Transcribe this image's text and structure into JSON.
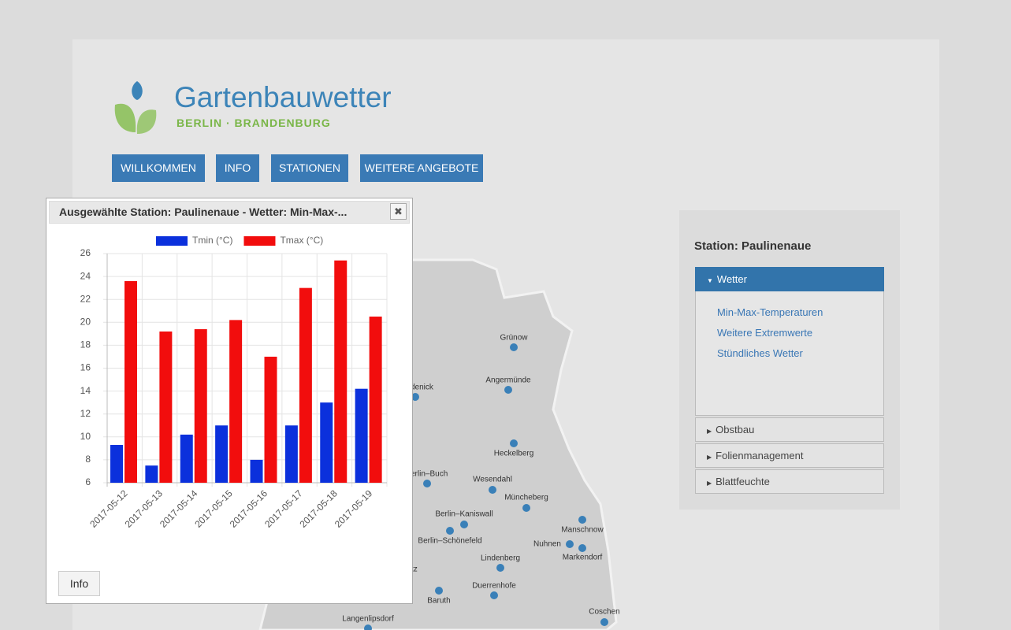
{
  "header": {
    "logo_title": "Gartenbauwetter",
    "logo_subtitle": "BERLIN · BRANDENBURG"
  },
  "nav": [
    "WILLKOMMEN",
    "INFO",
    "STATIONEN",
    "WEITERE ANGEBOTE"
  ],
  "map": {
    "places": [
      "Grünow",
      "Angermünde",
      "denick",
      "Heckelberg",
      "erlin–Buch",
      "Wesendahl",
      "Müncheberg",
      "Berlin–Kaniswall",
      "Berlin–Schönefeld",
      "Manschnow",
      "Nuhnen",
      "Markendorf",
      "Lindenberg",
      "Duerrenhofe",
      "Baruth",
      "tz",
      "Langenlipsdorf",
      "Coschen"
    ]
  },
  "dialog": {
    "title": "Ausgewählte Station: Paulinenaue - Wetter: Min-Max-...",
    "button": "Info"
  },
  "chart_data": {
    "type": "bar",
    "categories": [
      "2017-05-12",
      "2017-05-13",
      "2017-05-14",
      "2017-05-15",
      "2017-05-16",
      "2017-05-17",
      "2017-05-18",
      "2017-05-19"
    ],
    "series": [
      {
        "name": "Tmin (°C)",
        "color": "#0b30dc",
        "values": [
          9.3,
          7.5,
          10.2,
          11.0,
          8.0,
          11.0,
          13.0,
          14.2
        ]
      },
      {
        "name": "Tmax (°C)",
        "color": "#f20d0d",
        "values": [
          23.6,
          19.2,
          19.4,
          20.2,
          17.0,
          23.0,
          25.4,
          20.5
        ]
      }
    ],
    "ylim": [
      6,
      26
    ],
    "yticks": [
      6,
      8,
      10,
      12,
      14,
      16,
      18,
      20,
      22,
      24,
      26
    ],
    "grid": true,
    "legend": "top"
  },
  "sidebar": {
    "title": "Station: Paulinenaue",
    "sections": [
      {
        "label": "Wetter",
        "links": [
          "Min-Max-Temperaturen",
          "Weitere Extremwerte",
          "Stündliches Wetter"
        ]
      },
      {
        "label": "Obstbau"
      },
      {
        "label": "Folienmanagement"
      },
      {
        "label": "Blattfeuchte"
      }
    ]
  }
}
